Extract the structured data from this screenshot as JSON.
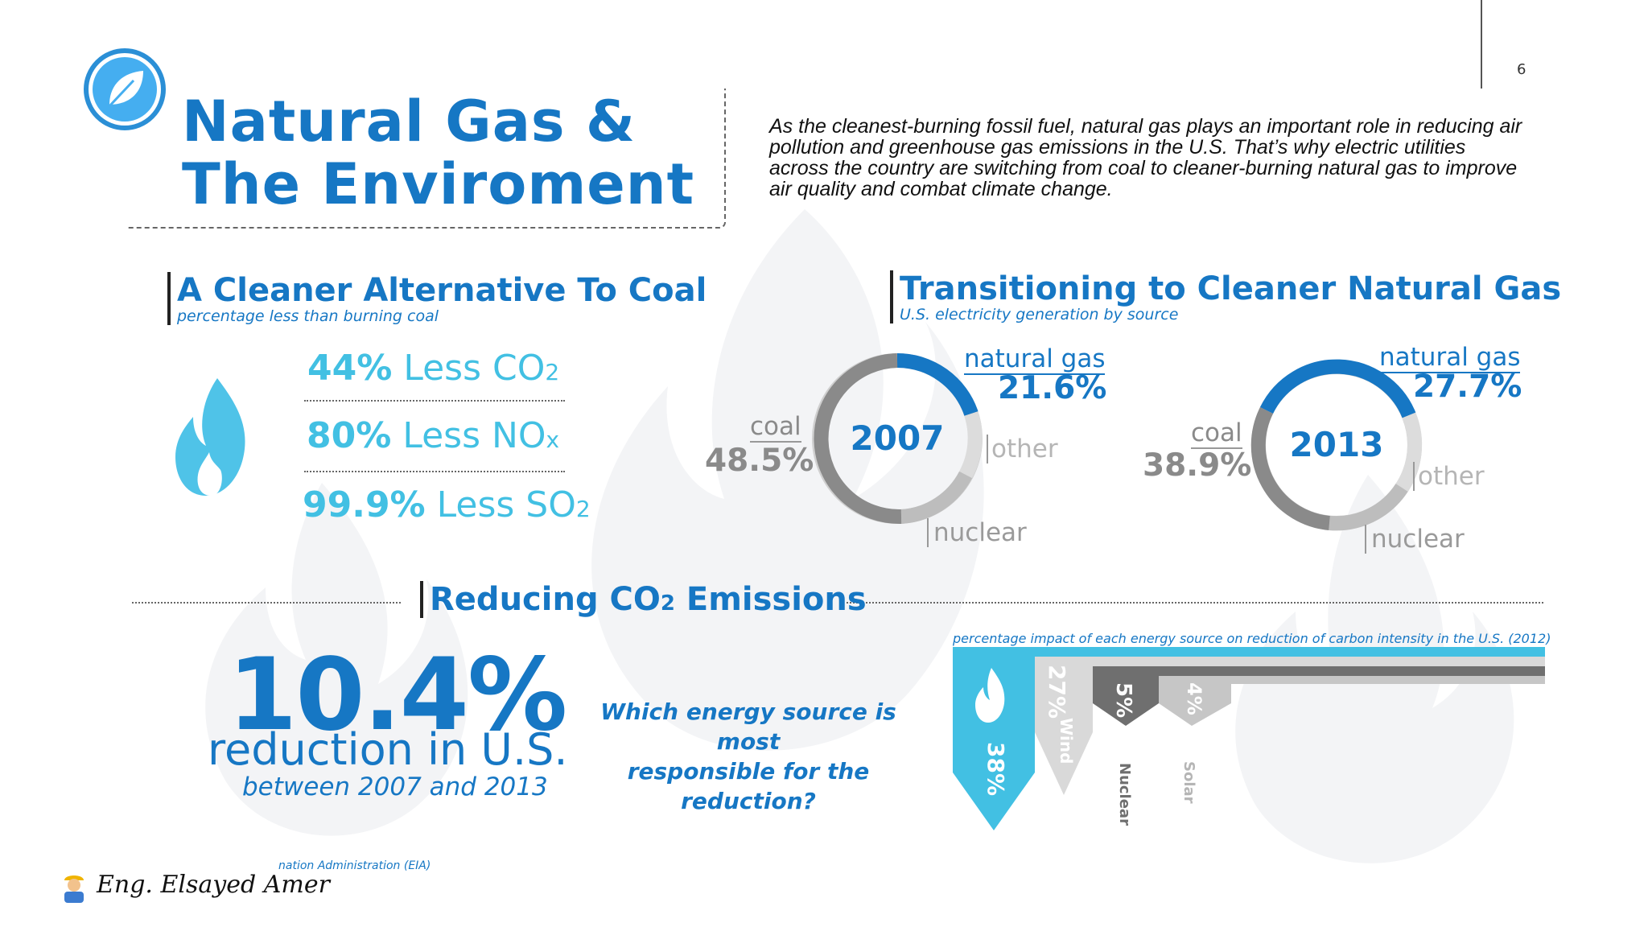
{
  "page_number": "6",
  "title_line1": "Natural Gas &",
  "title_line2": "The Enviroment",
  "intro": "As the cleanest-burning fossil fuel, natural gas plays an important role in reducing air pollution and greenhouse gas emissions in the U.S. That’s why electric utilities across the country are switching from coal to cleaner-burning natural gas to improve air quality and combat climate change.",
  "cleaner": {
    "title": "A Cleaner Alternative To Coal",
    "subtitle": "percentage less than burning coal",
    "stats": [
      {
        "pct": "44%",
        "text": "Less CO",
        "sub": "2"
      },
      {
        "pct": "80%",
        "text": "Less NO",
        "sub": "x"
      },
      {
        "pct": "99.9%",
        "text": "Less SO",
        "sub": "2"
      }
    ]
  },
  "transition": {
    "title": "Transitioning to Cleaner Natural Gas",
    "subtitle": "U.S. electricity generation by source",
    "donuts": [
      {
        "year": "2007",
        "gas_label": "natural gas",
        "gas_pct": "21.6%",
        "coal_label": "coal",
        "coal_pct": "48.5%",
        "other_label": "other",
        "nuclear_label": "nuclear"
      },
      {
        "year": "2013",
        "gas_label": "natural gas",
        "gas_pct": "27.7%",
        "coal_label": "coal",
        "coal_pct": "38.9%",
        "other_label": "other",
        "nuclear_label": "nuclear"
      }
    ]
  },
  "reducing": {
    "title_main": "Reducing CO",
    "title_sub": "2",
    "title_tail": " Emissions",
    "big_pct": "10.4%",
    "big_sub": "reduction in U.S.",
    "big_sub2": "between 2007 and 2013",
    "question_line1": "Which energy source is most",
    "question_line2": "responsible for the reduction?",
    "impact_caption": "percentage impact of each energy source on reduction of carbon intensity in the U.S. (2012)",
    "impact": [
      {
        "pct": "38%",
        "label": ""
      },
      {
        "pct": "27%",
        "label": "Wind"
      },
      {
        "pct": "5%",
        "label": "Nuclear"
      },
      {
        "pct": "4%",
        "label": "Solar"
      }
    ]
  },
  "source_text": "nation Administration (EIA)",
  "signature": "Eng. Elsayed Amer",
  "colors": {
    "blue": "#1677c4",
    "light_blue": "#42c0e3",
    "gray": "#8a8a8a",
    "light_gray": "#cfcfcf",
    "dark_gray": "#6f6f6f"
  }
}
